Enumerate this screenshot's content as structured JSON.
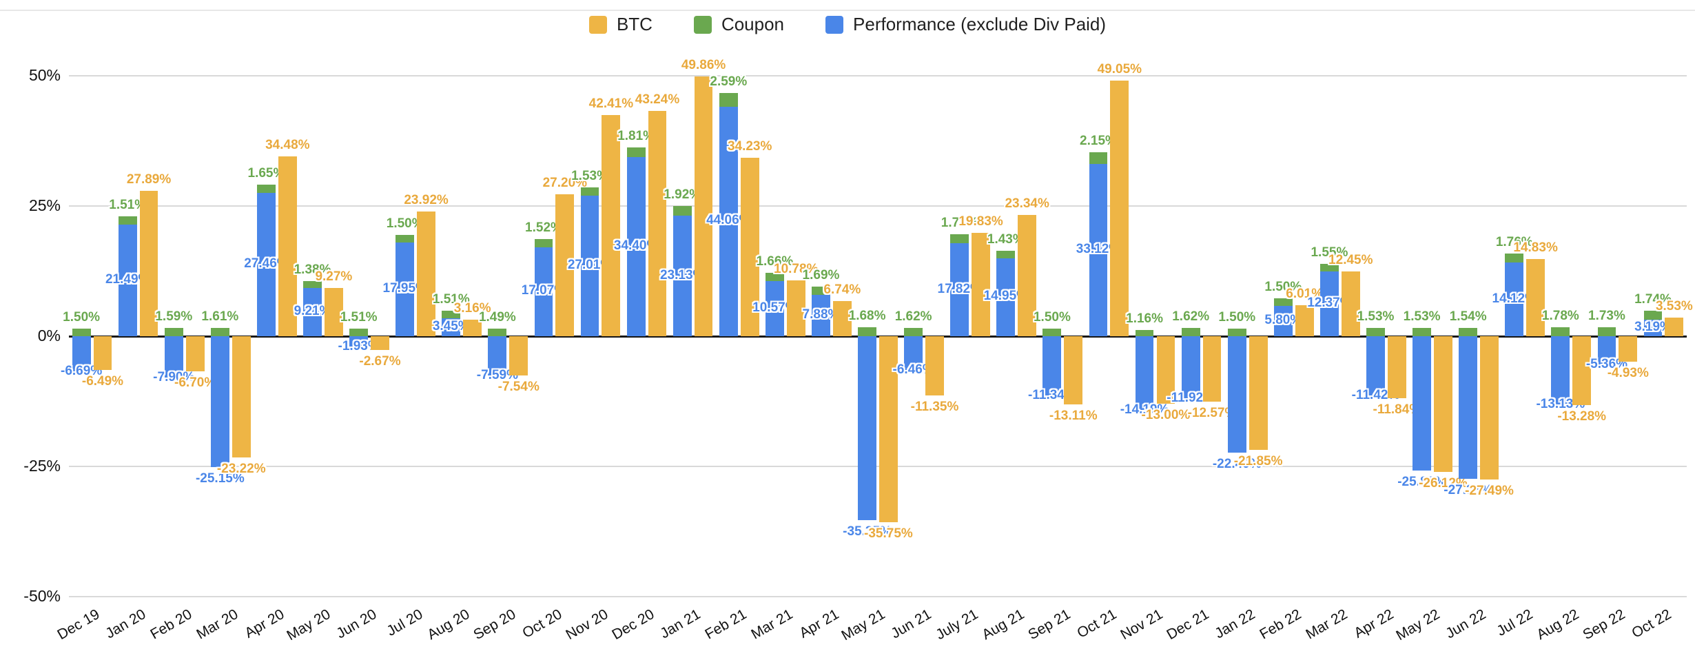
{
  "legend": {
    "items": [
      {
        "label": "BTC",
        "color": "#EEB545"
      },
      {
        "label": "Coupon",
        "color": "#6AA84F"
      },
      {
        "label": "Performance (exclude Div Paid)",
        "color": "#4A86E8"
      }
    ]
  },
  "colors": {
    "btc": "#EEB545",
    "coupon": "#6AA84F",
    "performance": "#4A86E8",
    "gridline": "#D9D9D9",
    "zero_line": "#161616"
  },
  "chart_data": {
    "type": "bar",
    "title": "",
    "xlabel": "",
    "ylabel": "",
    "ylim": [
      -50,
      50
    ],
    "yticks": [
      {
        "label": "50%",
        "value": 50
      },
      {
        "label": "25%",
        "value": 25
      },
      {
        "label": "0%",
        "value": 0
      },
      {
        "label": "-25%",
        "value": -25
      },
      {
        "label": "-50%",
        "value": -50
      }
    ],
    "grid": true,
    "legend_position": "top-center",
    "bar_structure": "Coupon is stacked on top of Performance in one column; BTC is a separate column beside it",
    "label_format": "0.00%",
    "categories": [
      "Dec 19",
      "Jan 20",
      "Feb 20",
      "Mar 20",
      "Apr 20",
      "May 20",
      "Jun 20",
      "Jul 20",
      "Aug 20",
      "Sep 20",
      "Oct 20",
      "Nov 20",
      "Dec 20",
      "Jan 21",
      "Feb 21",
      "Mar 21",
      "Apr 21",
      "May 21",
      "Jun 21",
      "July 21",
      "Aug 21",
      "Sep 21",
      "Oct 21",
      "Nov 21",
      "Dec 21",
      "Jan 22",
      "Feb 22",
      "Mar 22",
      "Apr 22",
      "May 22",
      "Jun 22",
      "Jul 22",
      "Aug 22",
      "Sep 22",
      "Oct 22"
    ],
    "series": [
      {
        "name": "BTC",
        "color": "#EEB545",
        "values": [
          -6.49,
          27.89,
          -6.7,
          -23.22,
          34.48,
          9.27,
          -2.67,
          23.92,
          3.16,
          -7.54,
          27.2,
          42.41,
          43.24,
          49.86,
          34.23,
          10.78,
          6.74,
          -35.75,
          -11.35,
          19.83,
          23.34,
          -13.11,
          49.05,
          -13.0,
          -12.57,
          -21.85,
          6.01,
          12.45,
          -11.84,
          -26.12,
          -27.49,
          14.83,
          -13.28,
          -4.93,
          3.53
        ]
      },
      {
        "name": "Coupon",
        "color": "#6AA84F",
        "values": [
          1.5,
          1.51,
          1.59,
          1.61,
          1.65,
          1.38,
          1.51,
          1.5,
          1.51,
          1.49,
          1.52,
          1.53,
          1.81,
          1.92,
          2.59,
          1.66,
          1.69,
          1.68,
          1.62,
          1.71,
          1.43,
          1.5,
          2.15,
          1.16,
          1.62,
          1.5,
          1.5,
          1.55,
          1.53,
          1.53,
          1.54,
          1.76,
          1.78,
          1.73,
          1.74
        ]
      },
      {
        "name": "Performance (exclude Div Paid)",
        "color": "#4A86E8",
        "values": [
          -6.69,
          21.49,
          -7.9,
          -25.15,
          27.46,
          9.21,
          -1.93,
          17.95,
          3.45,
          -7.59,
          17.07,
          27.01,
          34.4,
          23.13,
          44.06,
          10.57,
          7.88,
          -35.35,
          -6.46,
          17.82,
          14.95,
          -11.34,
          33.12,
          -14.19,
          -11.92,
          -22.4,
          5.8,
          12.37,
          -11.42,
          -25.83,
          -27.38,
          14.12,
          -13.13,
          -5.36,
          3.19
        ]
      }
    ]
  }
}
